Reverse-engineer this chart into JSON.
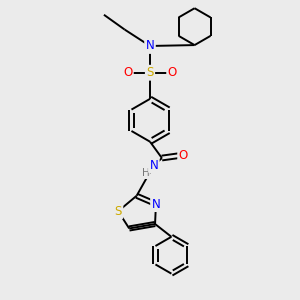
{
  "background_color": "#ebebeb",
  "bond_color": "#000000",
  "atom_colors": {
    "N": "#0000ff",
    "O": "#ff0000",
    "S_sulfonyl": "#ccaa00",
    "S_thiazole": "#ccaa00",
    "H": "#777777",
    "C": "#000000"
  },
  "font_size_atoms": 8.5,
  "line_width": 1.4,
  "fig_w": 3.0,
  "fig_h": 3.0,
  "dpi": 100
}
